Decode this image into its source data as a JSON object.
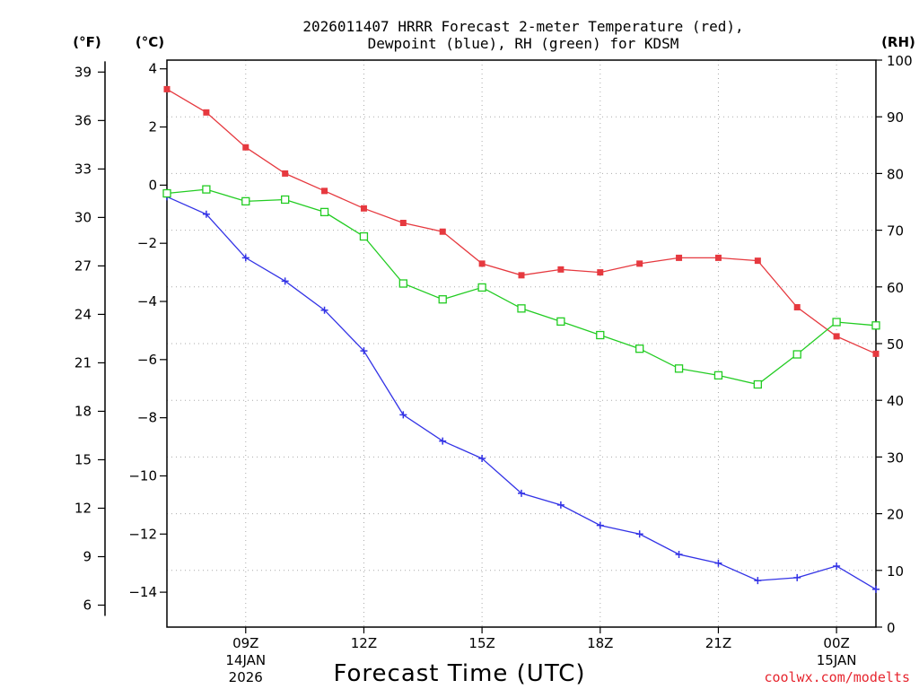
{
  "chart_data": {
    "type": "line",
    "title_line1": "2026011407 HRRR Forecast 2-meter Temperature (red),",
    "title_line2": "Dewpoint (blue), RH (green) for KDSM",
    "xlabel": "Forecast Time (UTC)",
    "credit": "coolwx.com/modelts",
    "units": {
      "fahrenheit": "(°F)",
      "celsius": "(°C)",
      "rh": "(RH)"
    },
    "celsius_axis": {
      "ylim": [
        -15.2,
        4.3
      ],
      "ticks": [
        4,
        2,
        0,
        -2,
        -4,
        -6,
        -8,
        -10,
        -12,
        -14
      ]
    },
    "fahrenheit_axis": {
      "ticks": [
        39,
        36,
        33,
        30,
        27,
        24,
        21,
        18,
        15,
        12,
        9,
        6
      ]
    },
    "rh_axis": {
      "ylim": [
        0,
        100
      ],
      "ticks": [
        100,
        90,
        80,
        70,
        60,
        50,
        40,
        30,
        20,
        10,
        0
      ]
    },
    "x_axis": {
      "first_hour": 7,
      "last_hour": 25,
      "ticks": [
        {
          "hour": 9,
          "label": "09Z",
          "date": "14JAN",
          "year": "2026"
        },
        {
          "hour": 12,
          "label": "12Z",
          "date": "",
          "year": ""
        },
        {
          "hour": 15,
          "label": "15Z",
          "date": "",
          "year": ""
        },
        {
          "hour": 18,
          "label": "18Z",
          "date": "",
          "year": ""
        },
        {
          "hour": 21,
          "label": "21Z",
          "date": "",
          "year": ""
        },
        {
          "hour": 24,
          "label": "00Z",
          "date": "15JAN",
          "year": ""
        }
      ]
    },
    "hours": [
      7,
      8,
      9,
      10,
      11,
      12,
      13,
      14,
      15,
      16,
      17,
      18,
      19,
      20,
      21,
      22,
      23,
      24,
      25
    ],
    "series": [
      {
        "name": "Temperature",
        "unit": "C",
        "color": "#e6393f",
        "marker": "filled-square",
        "values": [
          3.3,
          2.5,
          1.3,
          0.4,
          -0.2,
          -0.8,
          -1.3,
          -1.6,
          -2.7,
          -3.1,
          -2.9,
          -3.0,
          -2.7,
          -2.5,
          -2.5,
          -2.6,
          -4.2,
          -5.2,
          -5.8
        ]
      },
      {
        "name": "Dewpoint",
        "unit": "C",
        "color": "#3333e6",
        "marker": "plus",
        "values": [
          -0.4,
          -1.0,
          -2.5,
          -3.3,
          -4.3,
          -5.7,
          -7.9,
          -8.8,
          -9.4,
          -10.6,
          -11.0,
          -11.7,
          -12.0,
          -12.7,
          -13.0,
          -13.6,
          -13.5,
          -13.1,
          -13.9
        ]
      },
      {
        "name": "RH",
        "unit": "%",
        "color": "#22cc22",
        "marker": "open-square",
        "values": [
          76.5,
          77.2,
          75.1,
          75.4,
          73.2,
          68.9,
          60.6,
          57.8,
          59.9,
          56.2,
          53.9,
          51.5,
          49.1,
          45.6,
          44.4,
          42.8,
          48.1,
          53.8,
          53.2
        ]
      }
    ]
  }
}
